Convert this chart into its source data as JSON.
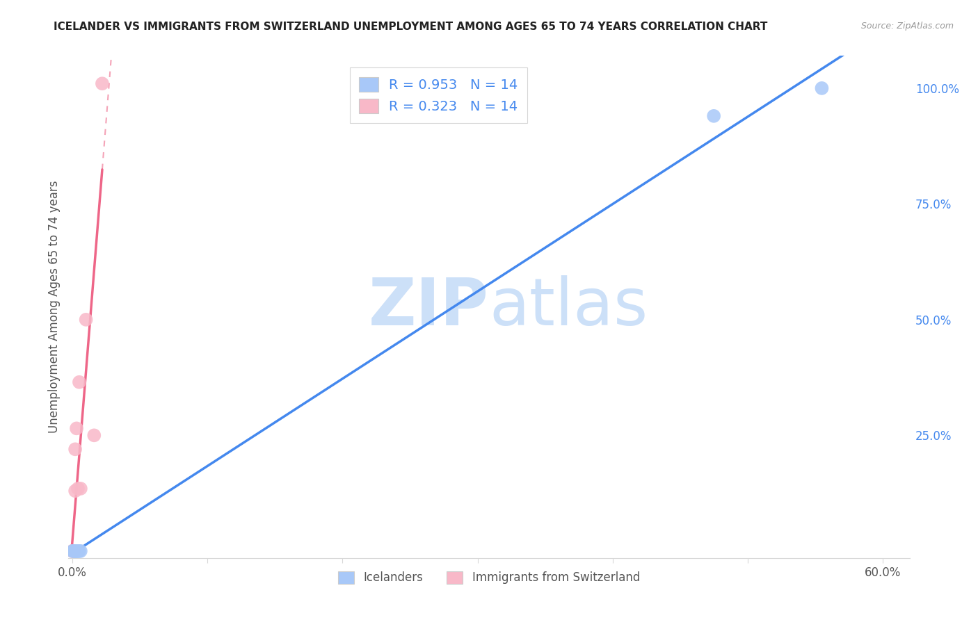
{
  "title": "ICELANDER VS IMMIGRANTS FROM SWITZERLAND UNEMPLOYMENT AMONG AGES 65 TO 74 YEARS CORRELATION CHART",
  "source": "Source: ZipAtlas.com",
  "ylabel": "Unemployment Among Ages 65 to 74 years",
  "blue_label": "Icelanders",
  "pink_label": "Immigrants from Switzerland",
  "blue_R": 0.953,
  "blue_N": 14,
  "pink_R": 0.323,
  "pink_N": 14,
  "xlim": [
    -0.003,
    0.62
  ],
  "ylim": [
    -0.015,
    1.07
  ],
  "xticks": [
    0.0,
    0.1,
    0.2,
    0.3,
    0.4,
    0.5,
    0.6
  ],
  "xtick_labels": [
    "0.0%",
    "",
    "",
    "",
    "",
    "",
    "60.0%"
  ],
  "yticks_right": [
    0.0,
    0.25,
    0.5,
    0.75,
    1.0
  ],
  "ytick_labels_right": [
    "",
    "25.0%",
    "50.0%",
    "75.0%",
    "100.0%"
  ],
  "blue_dot_color": "#a8c8f8",
  "pink_dot_color": "#f8b8c8",
  "blue_line_color": "#4488ee",
  "pink_line_color": "#ee6688",
  "grid_color": "#d8d8d8",
  "title_color": "#222222",
  "axis_label_color": "#555555",
  "right_tick_color": "#4488ee",
  "bg_color": "#ffffff",
  "watermark_color": "#cce0f8",
  "blue_x": [
    0.0,
    0.001,
    0.001,
    0.002,
    0.002,
    0.003,
    0.003,
    0.003,
    0.004,
    0.004,
    0.005,
    0.006,
    0.475,
    0.555
  ],
  "blue_y": [
    0.0,
    0.0,
    0.0,
    0.0,
    0.0,
    0.0,
    0.0,
    0.0,
    0.0,
    0.0,
    0.0,
    0.0,
    0.94,
    1.0
  ],
  "pink_x": [
    0.0,
    0.0,
    0.001,
    0.001,
    0.001,
    0.002,
    0.002,
    0.003,
    0.004,
    0.005,
    0.006,
    0.01,
    0.016,
    0.022
  ],
  "pink_y": [
    0.0,
    0.0,
    0.0,
    0.0,
    0.0,
    0.13,
    0.22,
    0.265,
    0.135,
    0.365,
    0.135,
    0.5,
    0.25,
    1.01
  ]
}
